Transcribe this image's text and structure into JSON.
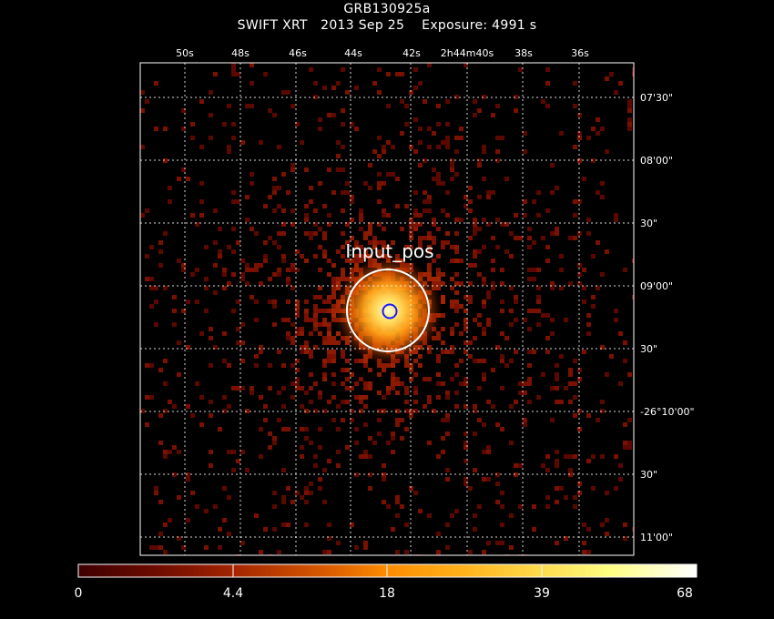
{
  "header": {
    "object_name": "GRB130925a",
    "subtitle": "SWIFT XRT   2013 Sep 25    Exposure: 4991 s"
  },
  "image": {
    "colormap": "heat",
    "background_color": "#000000",
    "source_marker_label": "Input_pos",
    "source_marker_color": "#ffffff",
    "center_marker_color": "#1a1aff",
    "grid": "dotted"
  },
  "axes": {
    "ra_ticks": [
      "50s",
      "48s",
      "46s",
      "44s",
      "42s",
      "2h44m40s",
      "38s",
      "36s"
    ],
    "dec_ticks": [
      "07'30\"",
      "08'00\"",
      "30\"",
      "09'00\"",
      "30\"",
      "-26°10'00\"",
      "30\"",
      "11'00\""
    ]
  },
  "colorbar": {
    "tick_labels": [
      "0",
      "4.4",
      "18",
      "39",
      "68"
    ],
    "colors": [
      "#ffffff",
      "#ffff66",
      "#ffcc22",
      "#ff8c00",
      "#cc4000",
      "#8c1a00",
      "#3d0000"
    ]
  }
}
